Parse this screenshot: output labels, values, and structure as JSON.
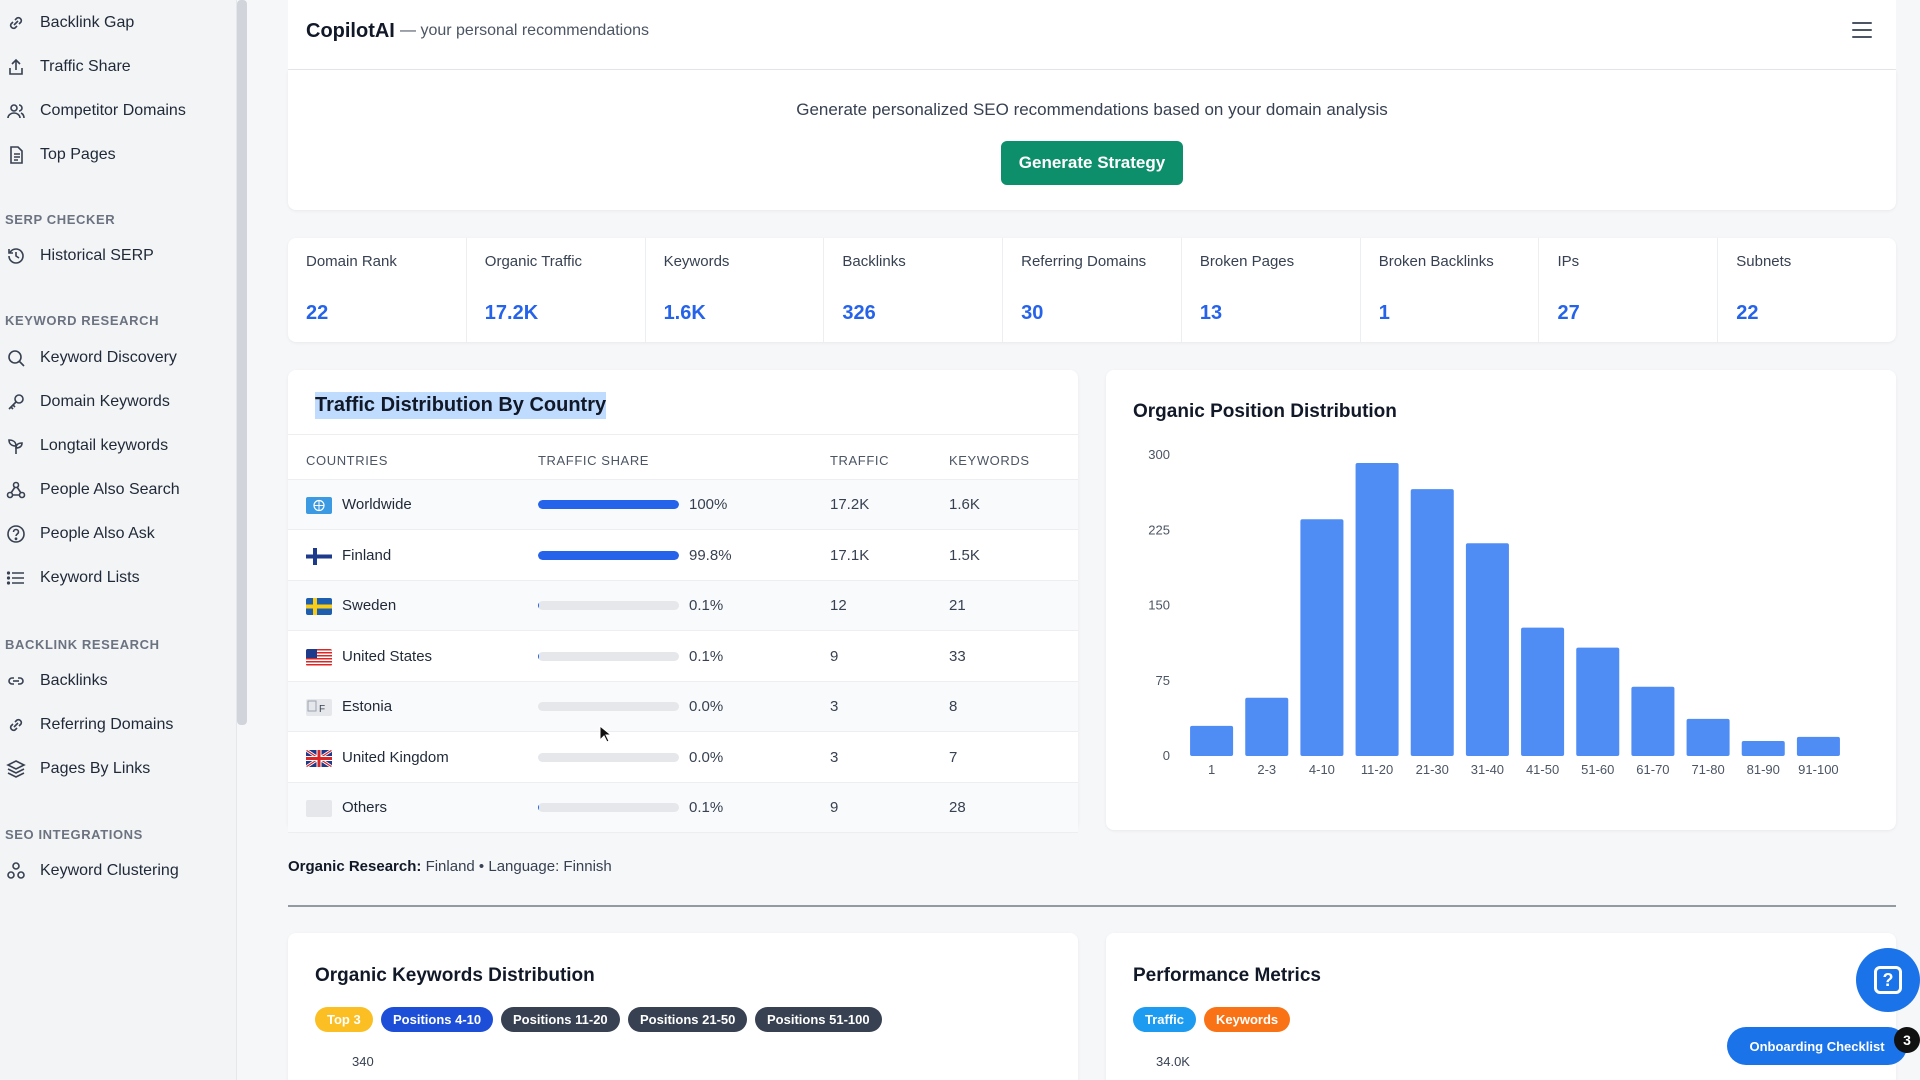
{
  "sidebar": {
    "items_top": [
      {
        "label": "Backlink Gap",
        "icon": "link-icon"
      },
      {
        "label": "Traffic Share",
        "icon": "share-icon"
      },
      {
        "label": "Competitor Domains",
        "icon": "users-icon"
      },
      {
        "label": "Top Pages",
        "icon": "document-icon"
      }
    ],
    "serp_title": "SERP CHECKER",
    "serp_items": [
      {
        "label": "Historical SERP",
        "icon": "history-icon"
      }
    ],
    "kw_title": "KEYWORD RESEARCH",
    "kw_items": [
      {
        "label": "Keyword Discovery",
        "icon": "search-icon"
      },
      {
        "label": "Domain Keywords",
        "icon": "key-icon"
      },
      {
        "label": "Longtail keywords",
        "icon": "sprout-icon"
      },
      {
        "label": "People Also Search",
        "icon": "people-network-icon"
      },
      {
        "label": "People Also Ask",
        "icon": "question-circle-icon"
      },
      {
        "label": "Keyword Lists",
        "icon": "list-icon"
      }
    ],
    "bl_title": "BACKLINK RESEARCH",
    "bl_items": [
      {
        "label": "Backlinks",
        "icon": "link-icon"
      },
      {
        "label": "Referring Domains",
        "icon": "link-icon"
      },
      {
        "label": "Pages By Links",
        "icon": "layers-icon"
      }
    ],
    "seo_title": "SEO INTEGRATIONS",
    "seo_items": [
      {
        "label": "Keyword Clustering",
        "icon": "cluster-icon"
      }
    ]
  },
  "header": {
    "brand": "CopilotAI",
    "tagline": "— your personal recommendations"
  },
  "generate": {
    "description": "Generate personalized SEO recommendations based on your domain analysis",
    "button": "Generate Strategy"
  },
  "metrics": [
    {
      "label": "Domain Rank",
      "value": "22"
    },
    {
      "label": "Organic Traffic",
      "value": "17.2K"
    },
    {
      "label": "Keywords",
      "value": "1.6K"
    },
    {
      "label": "Backlinks",
      "value": "326"
    },
    {
      "label": "Referring Domains",
      "value": "30"
    },
    {
      "label": "Broken Pages",
      "value": "13"
    },
    {
      "label": "Broken Backlinks",
      "value": "1"
    },
    {
      "label": "IPs",
      "value": "27"
    },
    {
      "label": "Subnets",
      "value": "22"
    }
  ],
  "traffic": {
    "title": "Traffic Distribution By Country",
    "headers": {
      "countries": "COUNTRIES",
      "share": "TRAFFIC SHARE",
      "traffic": "TRAFFIC",
      "keywords": "KEYWORDS"
    },
    "rows": [
      {
        "country": "Worldwide",
        "flag": "globe",
        "share_pct": "100%",
        "share": 1.0,
        "traffic": "17.2K",
        "keywords": "1.6K"
      },
      {
        "country": "Finland",
        "flag": "fi",
        "share_pct": "99.8%",
        "share": 0.998,
        "traffic": "17.1K",
        "keywords": "1.5K"
      },
      {
        "country": "Sweden",
        "flag": "se",
        "share_pct": "0.1%",
        "share": 0.001,
        "traffic": "12",
        "keywords": "21"
      },
      {
        "country": "United States",
        "flag": "us",
        "share_pct": "0.1%",
        "share": 0.001,
        "traffic": "9",
        "keywords": "33"
      },
      {
        "country": "Estonia",
        "flag": "ee",
        "share_pct": "0.0%",
        "share": 0.0,
        "traffic": "3",
        "keywords": "8"
      },
      {
        "country": "United Kingdom",
        "flag": "gb",
        "share_pct": "0.0%",
        "share": 0.0,
        "traffic": "3",
        "keywords": "7"
      },
      {
        "country": "Others",
        "flag": "none",
        "share_pct": "0.1%",
        "share": 0.001,
        "traffic": "9",
        "keywords": "28"
      }
    ]
  },
  "chart_data": {
    "type": "bar",
    "title": "Organic Position Distribution",
    "categories": [
      "1",
      "2-3",
      "4-10",
      "11-20",
      "21-30",
      "31-40",
      "41-50",
      "51-60",
      "61-70",
      "71-80",
      "81-90",
      "91-100"
    ],
    "values": [
      30,
      58,
      236,
      292,
      266,
      212,
      128,
      108,
      69,
      37,
      15,
      19
    ],
    "yticks": [
      "0",
      "75",
      "150",
      "225",
      "300"
    ],
    "ylim": [
      0,
      300
    ],
    "color": "#4f8df5",
    "grid": false
  },
  "research": {
    "label": "Organic Research:",
    "value": "Finland • Language: Finnish"
  },
  "okd": {
    "title": "Organic Keywords Distribution",
    "pills": [
      {
        "label": "Top 3",
        "color": "#fbbf24"
      },
      {
        "label": "Positions 4-10",
        "color": "#1d4ed8"
      },
      {
        "label": "Positions 11-20",
        "color": "#374151"
      },
      {
        "label": "Positions 21-50",
        "color": "#374151"
      },
      {
        "label": "Positions 51-100",
        "color": "#374151"
      }
    ],
    "axis_top": "340"
  },
  "perf": {
    "title": "Performance Metrics",
    "pills": [
      {
        "label": "Traffic",
        "color": "#1d9bf0"
      },
      {
        "label": "Keywords",
        "color": "#f97316"
      }
    ],
    "axis_top": "34.0K"
  },
  "onboarding": {
    "label": "Onboarding Checklist",
    "count": "3"
  },
  "help": {
    "icon": "help-icon",
    "glyph": "?"
  }
}
